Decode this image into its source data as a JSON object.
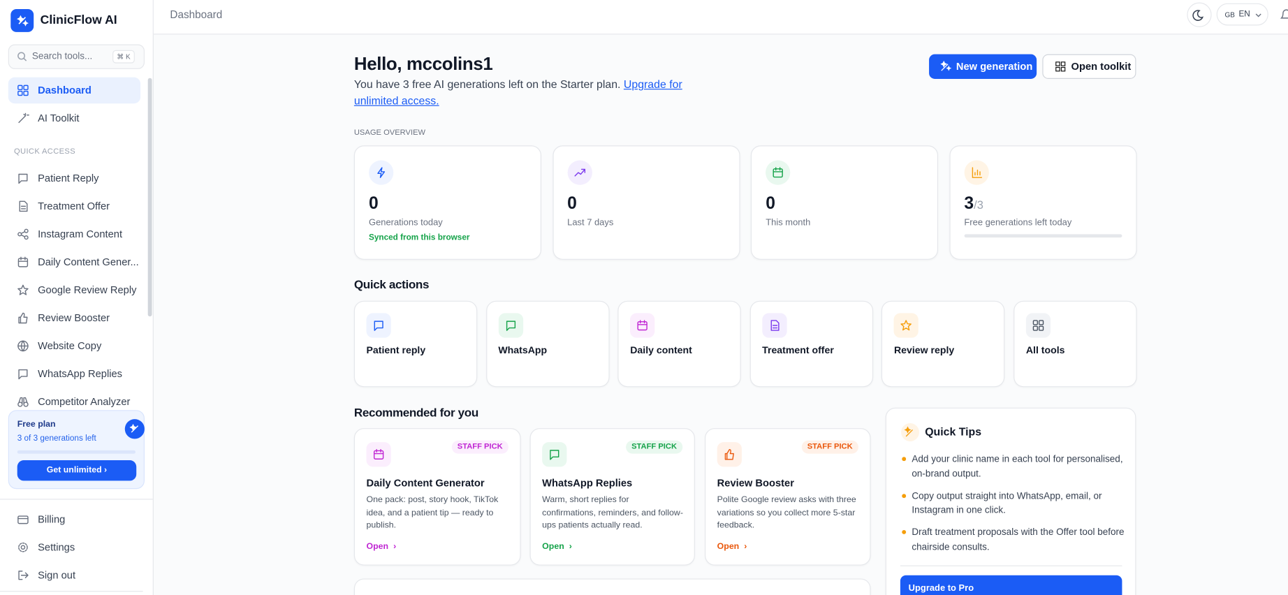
{
  "sidebar": {
    "brand": "ClinicFlow AI",
    "search_placeholder": "Search tools...",
    "search_shortcut": "⌘ K",
    "nav": [
      "Dashboard",
      "AI Toolkit"
    ],
    "section_label": "QUICK ACCESS",
    "quick_access": [
      "Patient Reply",
      "Treatment Offer",
      "Instagram Content",
      "Daily Content Gener...",
      "Google Review Reply",
      "Review Booster",
      "Website Copy",
      "WhatsApp Replies",
      "Competitor Analyzer"
    ],
    "plan": {
      "title": "Free plan",
      "subtitle": "3 of 3 generations left",
      "button": "Get unlimited"
    },
    "footer_nav": [
      "Billing",
      "Settings",
      "Sign out"
    ]
  },
  "header": {
    "breadcrumb": "Dashboard",
    "language_flag": "GB",
    "language": "EN"
  },
  "greeting": {
    "title": "Hello, mccolins1",
    "text": "You have 3 free AI generations left on the Starter plan.",
    "link": "Upgrade for unlimited access."
  },
  "actions": [
    "New generation",
    "Open toolkit"
  ],
  "usage": {
    "label": "USAGE OVERVIEW",
    "cards": [
      {
        "value": "0",
        "label": "Generations today",
        "note": "Synced from this browser"
      },
      {
        "value": "0",
        "label": "Last 7 days"
      },
      {
        "value": "0",
        "label": "This month"
      },
      {
        "value": "3",
        "suffix": "/3",
        "label": "Free generations left today"
      }
    ]
  },
  "quick_actions": {
    "title": "Quick actions",
    "items": [
      "Patient reply",
      "WhatsApp",
      "Daily content",
      "Treatment offer",
      "Review reply",
      "All tools"
    ]
  },
  "recommended": {
    "title": "Recommended for you",
    "cards": [
      {
        "badge": "STAFF PICK",
        "title": "Daily Content Generator",
        "description": "One pack: post, story hook, TikTok idea, and a patient tip — ready to publish.",
        "link": "Open"
      },
      {
        "badge": "STAFF PICK",
        "title": "WhatsApp Replies",
        "description": "Warm, short replies for confirmations, reminders, and follow-ups patients actually read.",
        "link": "Open"
      },
      {
        "badge": "STAFF PICK",
        "title": "Review Booster",
        "description": "Polite Google review asks with three variations so you collect more 5-star feedback.",
        "link": "Open"
      }
    ]
  },
  "tips": {
    "title": "Quick Tips",
    "items": [
      "Add your clinic name in each tool for personalised, on-brand output.",
      "Copy output straight into WhatsApp, email, or Instagram in one click.",
      "Draft treatment proposals with the Offer tool before chairside consults."
    ],
    "button": "Upgrade to Pro"
  }
}
